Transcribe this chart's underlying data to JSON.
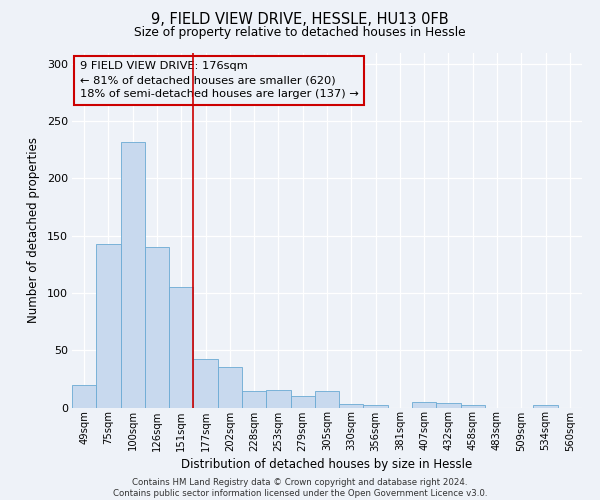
{
  "title": "9, FIELD VIEW DRIVE, HESSLE, HU13 0FB",
  "subtitle": "Size of property relative to detached houses in Hessle",
  "xlabel": "Distribution of detached houses by size in Hessle",
  "ylabel": "Number of detached properties",
  "bar_labels": [
    "49sqm",
    "75sqm",
    "100sqm",
    "126sqm",
    "151sqm",
    "177sqm",
    "202sqm",
    "228sqm",
    "253sqm",
    "279sqm",
    "305sqm",
    "330sqm",
    "356sqm",
    "381sqm",
    "407sqm",
    "432sqm",
    "458sqm",
    "483sqm",
    "509sqm",
    "534sqm",
    "560sqm"
  ],
  "bar_values": [
    20,
    143,
    232,
    140,
    105,
    42,
    35,
    14,
    15,
    10,
    14,
    3,
    2,
    0,
    5,
    4,
    2,
    0,
    0,
    2,
    0
  ],
  "bar_color": "#c8d9ee",
  "bar_edge_color": "#6aaad4",
  "vline_x_idx": 5,
  "vline_color": "#cc0000",
  "annotation_lines": [
    "9 FIELD VIEW DRIVE: 176sqm",
    "← 81% of detached houses are smaller (620)",
    "18% of semi-detached houses are larger (137) →"
  ],
  "annotation_box_color": "#cc0000",
  "ylim": [
    0,
    310
  ],
  "yticks": [
    0,
    50,
    100,
    150,
    200,
    250,
    300
  ],
  "footer_lines": [
    "Contains HM Land Registry data © Crown copyright and database right 2024.",
    "Contains public sector information licensed under the Open Government Licence v3.0."
  ],
  "bg_color": "#eef2f8",
  "grid_color": "#ffffff"
}
